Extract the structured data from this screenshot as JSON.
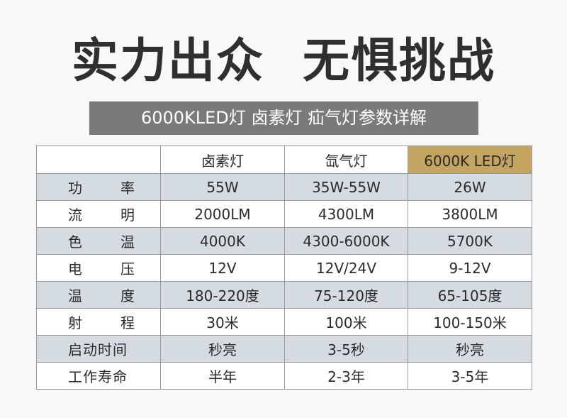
{
  "headline": {
    "left": "实力出众",
    "right": "无惧挑战"
  },
  "banner": {
    "text": "6000KLED灯  卤素灯  疝气灯参数详解"
  },
  "table": {
    "columns": [
      "",
      "卤素灯",
      "氙气灯",
      "6000K LED灯"
    ],
    "highlight_color": "#c4a461",
    "rows": [
      {
        "label_chars": [
          "功",
          "率"
        ],
        "values": [
          "55W",
          "35W-55W",
          "26W"
        ]
      },
      {
        "label_chars": [
          "流",
          "明"
        ],
        "values": [
          "2000LM",
          "4300LM",
          "3800LM"
        ]
      },
      {
        "label_chars": [
          "色",
          "温"
        ],
        "values": [
          "4000K",
          "4300-6000K",
          "5700K"
        ]
      },
      {
        "label_chars": [
          "电",
          "压"
        ],
        "values": [
          "12V",
          "12V/24V",
          "9-12V"
        ]
      },
      {
        "label_chars": [
          "温",
          "度"
        ],
        "values": [
          "180-220度",
          "75-120度",
          "65-105度"
        ]
      },
      {
        "label_chars": [
          "射",
          "程"
        ],
        "values": [
          "30米",
          "100米",
          "100-150米"
        ]
      },
      {
        "label": "启动时间",
        "values": [
          "秒亮",
          "3-5秒",
          "秒亮"
        ]
      },
      {
        "label": "工作寿命",
        "values": [
          "半年",
          "2-3年",
          "3-5年"
        ]
      }
    ]
  }
}
